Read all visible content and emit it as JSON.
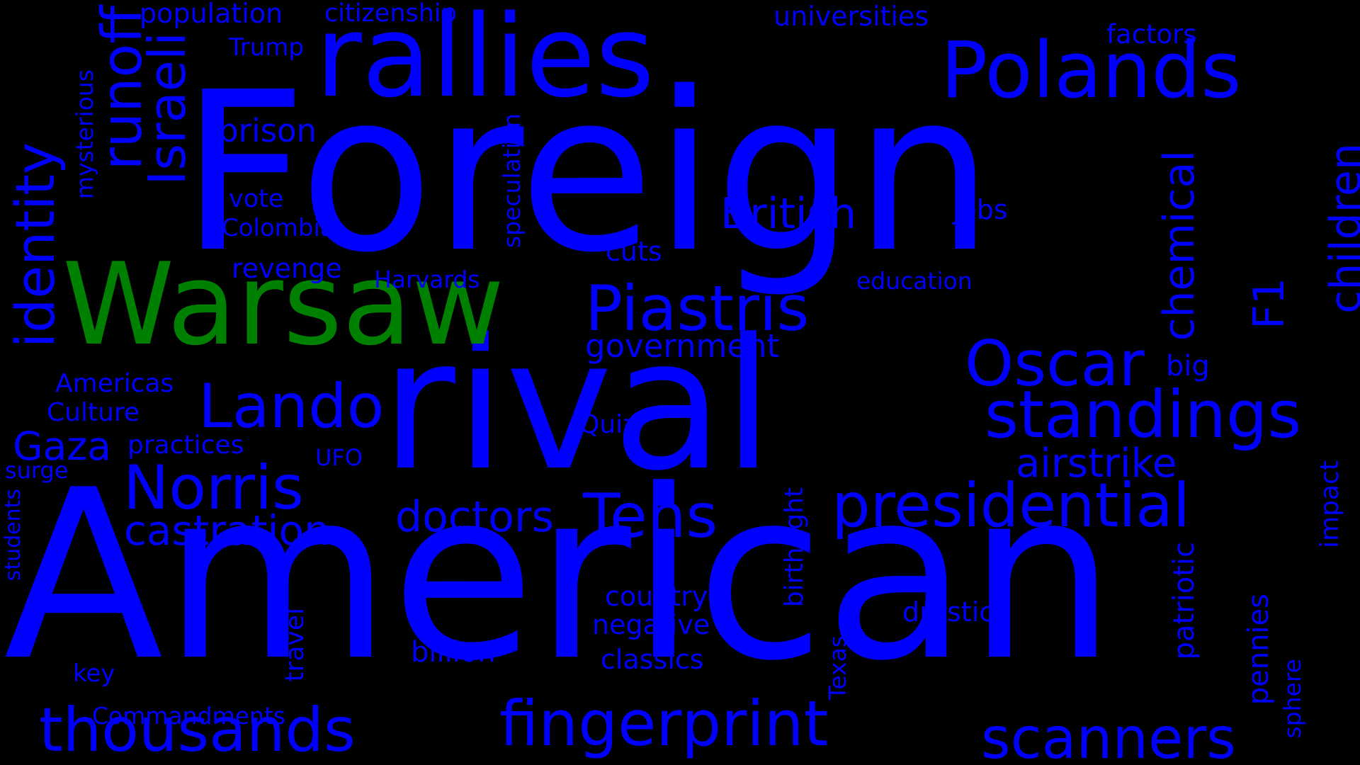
{
  "colors": {
    "background": "#000000",
    "primary": "#0000ff",
    "accent": "#008000"
  },
  "words": {
    "foreign": "Foreign",
    "american": "American",
    "rival": "rival",
    "warsaw": "Warsaw",
    "rallies": "rallies",
    "polands": "Polands",
    "piastris": "Piastris",
    "oscar": "Oscar",
    "standings": "standings",
    "presidential": "presidential",
    "lando": "Lando",
    "norris": "Norris",
    "tens": "Tens",
    "thousands": "thousands",
    "fingerprint": "fingerprint",
    "scanners": "scanners",
    "identity": "identity",
    "runoff": "runoff",
    "israeli": "Israeli",
    "british": "British",
    "airstrike": "airstrike",
    "castration": "castration",
    "doctors": "doctors",
    "gaza": "Gaza",
    "chemical": "chemical",
    "children": "children",
    "f1": "F1",
    "government": "government",
    "prison": "prison",
    "population": "population",
    "citizenship": "citizenship",
    "universities": "universities",
    "factors": "factors",
    "trump": "Trump",
    "mysterious": "mysterious",
    "vote": "vote",
    "colombia": "Colombia",
    "revenge": "revenge",
    "harvards": "Harvards",
    "speculation": "speculation",
    "jobs": "jobs",
    "cuts": "cuts",
    "education": "education",
    "americas": "Americas",
    "culture": "Culture",
    "practices": "practices",
    "ufo": "UFO",
    "surge": "surge",
    "students": "students",
    "quiz": "Quiz",
    "big": "big",
    "impact": "impact",
    "birthright": "birthright",
    "country": "country",
    "negative": "negative",
    "drastic": "drastic",
    "billion": "billion",
    "classics": "classics",
    "key": "key",
    "travel": "travel",
    "commandments": "Commandments",
    "texas": "Texas",
    "patriotic": "patriotic",
    "pennies": "pennies",
    "sphere": "sphere"
  }
}
